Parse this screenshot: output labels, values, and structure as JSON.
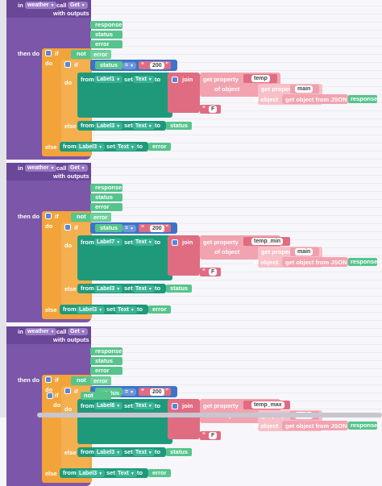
{
  "blocks": [
    {
      "event_in": "in",
      "component": "weather",
      "call": "call",
      "method": "Get",
      "with_outputs": "with outputs",
      "outputs": [
        "response",
        "status",
        "error"
      ],
      "then_do": "then do",
      "if_kw": "if",
      "not_kw": "not",
      "not_arg": "error",
      "do_kw": "do",
      "inner_if": "if",
      "status_var": "status",
      "eq_op": "=",
      "code": "200",
      "inner_do": "do",
      "from_kw": "from",
      "label_main": "Label1",
      "set_kw": "set",
      "text_prop": "Text",
      "to_kw": "to",
      "join_kw": "join",
      "get_property": "get property",
      "prop_name": "temp",
      "of_object": "of object",
      "sub_prop": "main",
      "get_object_from_json": "get object from JSON",
      "json_arg": "response",
      "unit": "F",
      "else_inner": "else",
      "label_status": "Label3",
      "status_arg": "status",
      "else_outer": "else",
      "label_error": "Label3",
      "error_arg": "error"
    },
    {
      "event_in": "in",
      "component": "weather",
      "call": "call",
      "method": "Get",
      "with_outputs": "with outputs",
      "outputs": [
        "response",
        "status",
        "error"
      ],
      "then_do": "then do",
      "if_kw": "if",
      "not_kw": "not",
      "not_arg": "error",
      "do_kw": "do",
      "inner_if": "if",
      "status_var": "status",
      "eq_op": "=",
      "code": "200",
      "inner_do": "do",
      "from_kw": "from",
      "label_main": "Label7",
      "set_kw": "set",
      "text_prop": "Text",
      "to_kw": "to",
      "join_kw": "join",
      "get_property": "get property",
      "prop_name": "temp_min",
      "of_object": "of object",
      "sub_prop": "main",
      "get_object_from_json": "get object from JSON",
      "json_arg": "response",
      "unit": "F",
      "else_inner": "else",
      "label_status": "Label3",
      "status_arg": "status",
      "else_outer": "else",
      "label_error": "Label3",
      "error_arg": "error"
    },
    {
      "event_in": "in",
      "component": "weather",
      "call": "call",
      "method": "Get",
      "with_outputs": "with outputs",
      "outputs": [
        "response",
        "status",
        "error"
      ],
      "then_do": "then do",
      "if_kw": "if",
      "not_kw": "not",
      "not_arg": "error",
      "do_kw": "do",
      "inner_if": "if",
      "status_var": "status",
      "eq_op": "=",
      "code": "200",
      "inner_do": "do",
      "from_kw": "from",
      "label_main": "Label8",
      "set_kw": "set",
      "text_prop": "Text",
      "to_kw": "to",
      "join_kw": "join",
      "get_property": "get property",
      "prop_name": "temp_max",
      "of_object": "of object",
      "sub_prop": "main",
      "get_object_from_json": "get object from JSON",
      "json_arg": "response",
      "unit": "F",
      "else_inner": "else",
      "label_status": "Label3",
      "status_arg": "status",
      "else_outer": "else",
      "label_error": "Label3",
      "error_arg": "error"
    }
  ],
  "overlap_fragments": {
    "status": "status",
    "if": "if",
    "not": "not",
    "do": "do"
  },
  "colors": {
    "event": "#7c56a8",
    "control": "#f2a43b",
    "variable": "#56c48c",
    "setter": "#1e9a7b",
    "text": "#e06c82",
    "dictionary": "#f2a3b0"
  },
  "dropdown_icon": "triangle-down-icon",
  "mutator_icon": "gear-icon"
}
